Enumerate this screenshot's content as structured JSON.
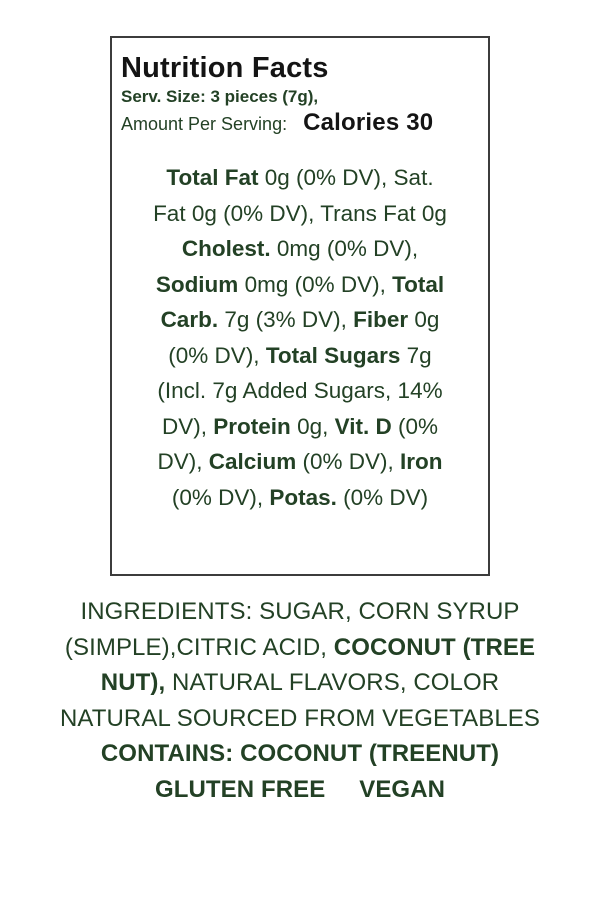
{
  "colors": {
    "green": "#234125",
    "black": "#141414",
    "border": "#3c3c3c"
  },
  "label": {
    "title": "Nutrition Facts",
    "serving_size": "Serv. Size: 3 pieces (7g),",
    "amount_per_serving_label": "Amount Per Serving:",
    "calories": "Calories 30",
    "body_lines": [
      [
        {
          "t": "Total Fat",
          "b": true
        },
        {
          "t": " 0g (0% DV), Sat."
        }
      ],
      [
        {
          "t": "Fat 0g (0% DV), Trans Fat 0g"
        }
      ],
      [
        {
          "t": "Cholest.",
          "b": true
        },
        {
          "t": " 0mg (0% DV),"
        }
      ],
      [
        {
          "t": "Sodium",
          "b": true
        },
        {
          "t": " 0mg (0% DV), "
        },
        {
          "t": "Total",
          "b": true
        }
      ],
      [
        {
          "t": "Carb.",
          "b": true
        },
        {
          "t": " 7g (3% DV), "
        },
        {
          "t": "Fiber",
          "b": true
        },
        {
          "t": " 0g"
        }
      ],
      [
        {
          "t": "(0% DV), "
        },
        {
          "t": "Total Sugars",
          "b": true
        },
        {
          "t": " 7g"
        }
      ],
      [
        {
          "t": "(Incl. 7g Added Sugars, 14%"
        }
      ],
      [
        {
          "t": "DV), "
        },
        {
          "t": "Protein",
          "b": true
        },
        {
          "t": " 0g, "
        },
        {
          "t": "Vit. D",
          "b": true
        },
        {
          "t": " (0%"
        }
      ],
      [
        {
          "t": "DV), "
        },
        {
          "t": "Calcium",
          "b": true
        },
        {
          "t": " (0% DV), "
        },
        {
          "t": "Iron",
          "b": true
        }
      ],
      [
        {
          "t": "(0% DV), "
        },
        {
          "t": "Potas.",
          "b": true
        },
        {
          "t": " (0% DV)"
        }
      ]
    ]
  },
  "ingredients": {
    "lines": [
      [
        {
          "t": "INGREDIENTS: SUGAR, CORN SYRUP"
        }
      ],
      [
        {
          "t": "(SIMPLE),CITRIC ACID, "
        },
        {
          "t": "COCONUT (TREE",
          "b": true
        }
      ],
      [
        {
          "t": "NUT),",
          "b": true
        },
        {
          "t": " NATURAL FLAVORS, COLOR"
        }
      ],
      [
        {
          "t": "NATURAL SOURCED FROM VEGETABLES"
        }
      ],
      [
        {
          "t": "CONTAINS: COCONUT (TREENUT)",
          "b": true
        }
      ],
      [
        {
          "t": "GLUTEN FREE     VEGAN",
          "b": true
        }
      ]
    ]
  }
}
